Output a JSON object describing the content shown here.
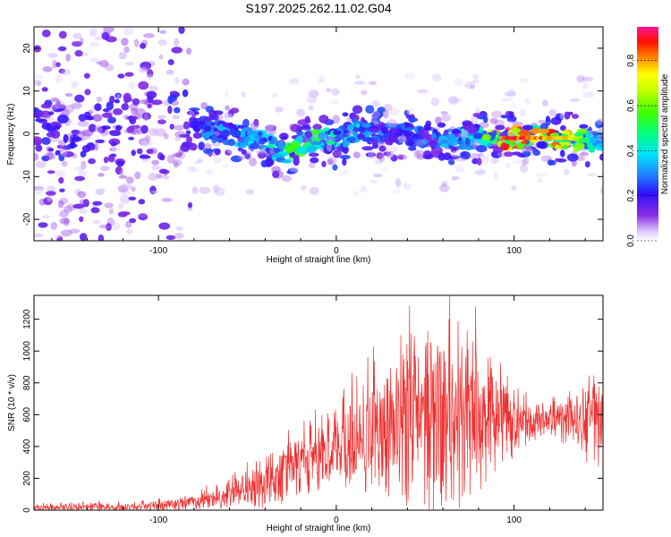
{
  "title": "S197.2025.262.11.02.G04",
  "colors": {
    "snr_line": "#f03030",
    "frame": "#000000",
    "background": "#ffffff"
  },
  "chart_data": [
    {
      "type": "heatmap",
      "name": "spectrogram",
      "xlabel": "Height of straight line (km)",
      "ylabel": "Frequency (Hz)",
      "xlim": [
        -170,
        150
      ],
      "ylim": [
        -25,
        25
      ],
      "xticks": [
        -100,
        0,
        100
      ],
      "yticks": [
        -20,
        -10,
        0,
        10,
        20
      ],
      "colorbar": {
        "label": "Normalized spectral amplitude",
        "range": [
          0,
          0.95
        ],
        "ticks": [
          0.0,
          0.2,
          0.4,
          0.6,
          0.8
        ]
      },
      "ridge_frequency_track": {
        "heights": [
          -110,
          -90,
          -80,
          -60,
          -40,
          -30,
          -20,
          -10,
          0,
          10,
          20,
          40,
          60,
          80,
          95,
          110,
          130,
          145
        ],
        "frequency": [
          1,
          3,
          2,
          0,
          -2,
          -5,
          -3,
          -1,
          -2,
          1,
          0,
          0,
          -1,
          -1,
          -1,
          -1,
          -1,
          -2
        ],
        "peak_amplitude": [
          0.15,
          0.25,
          0.3,
          0.35,
          0.4,
          0.55,
          0.7,
          0.5,
          0.45,
          0.45,
          0.3,
          0.3,
          0.35,
          0.45,
          0.95,
          0.9,
          0.85,
          0.4
        ]
      }
    },
    {
      "type": "line",
      "name": "snr",
      "xlabel": "Height of straight line (km)",
      "ylabel": "SNR (10 * v/v)",
      "xlim": [
        -170,
        150
      ],
      "ylim": [
        0,
        1350
      ],
      "xticks": [
        -100,
        0,
        100
      ],
      "yticks": [
        0,
        200,
        400,
        600,
        800,
        1000,
        1200
      ],
      "envelope": {
        "x": [
          -170,
          -140,
          -120,
          -100,
          -90,
          -80,
          -70,
          -60,
          -50,
          -40,
          -30,
          -20,
          -10,
          0,
          10,
          20,
          30,
          40,
          50,
          60,
          70,
          80,
          90,
          100,
          110,
          120,
          130,
          140,
          150
        ],
        "baseline": [
          15,
          15,
          15,
          20,
          25,
          40,
          60,
          80,
          110,
          140,
          190,
          240,
          290,
          330,
          380,
          420,
          440,
          460,
          470,
          480,
          480,
          480,
          490,
          510,
          530,
          540,
          530,
          520,
          500
        ],
        "spread": [
          25,
          30,
          30,
          40,
          50,
          60,
          70,
          100,
          140,
          180,
          200,
          230,
          250,
          300,
          350,
          450,
          520,
          580,
          640,
          680,
          650,
          560,
          420,
          250,
          140,
          120,
          200,
          300,
          320
        ]
      }
    }
  ]
}
